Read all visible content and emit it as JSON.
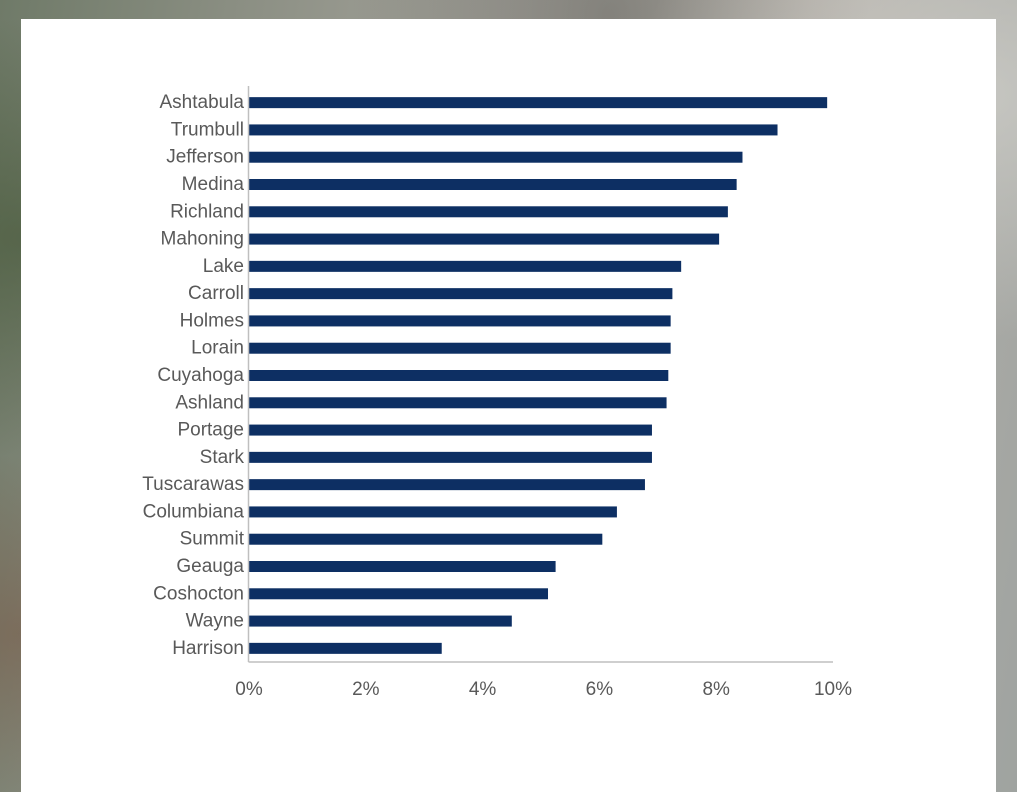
{
  "chart_data": {
    "type": "bar",
    "orientation": "horizontal",
    "title": "",
    "xlabel": "",
    "ylabel": "",
    "xlim": [
      0,
      10
    ],
    "grid": false,
    "legend": "none",
    "bar_color": "#0d2f63",
    "axis_color": "#bfbfbf",
    "tick_color": "#595959",
    "categories": [
      "Ashtabula",
      "Trumbull",
      "Jefferson",
      "Medina",
      "Richland",
      "Mahoning",
      "Lake",
      "Carroll",
      "Holmes",
      "Lorain",
      "Cuyahoga",
      "Ashland",
      "Portage",
      "Stark",
      "Tuscarawas",
      "Columbiana",
      "Summit",
      "Geauga",
      "Coshocton",
      "Wayne",
      "Harrison"
    ],
    "values": [
      9.9,
      9.05,
      8.45,
      8.35,
      8.2,
      8.05,
      7.4,
      7.25,
      7.22,
      7.22,
      7.18,
      7.15,
      6.9,
      6.9,
      6.78,
      6.3,
      6.05,
      5.25,
      5.12,
      4.5,
      3.3
    ],
    "xticks": [
      "0%",
      "2%",
      "4%",
      "6%",
      "8%",
      "10%"
    ]
  }
}
